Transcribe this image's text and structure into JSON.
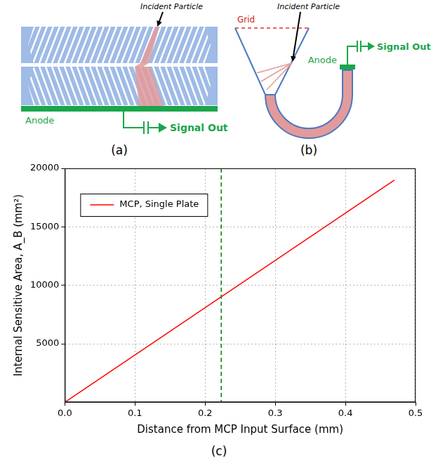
{
  "diagrams": [
    {
      "panel_label": "(a)",
      "incident_label": "Incident Particle",
      "anode_label": "Anode",
      "signal_label": "Signal Out"
    },
    {
      "panel_label": "(b)",
      "grid_label": "Grid",
      "incident_label": "Incident Particle",
      "anode_label": "Anode",
      "signal_label": "Signal Out"
    }
  ],
  "chart_data": {
    "type": "line",
    "panel_label": "(c)",
    "x_label": "Distance from MCP Input Surface (mm)",
    "y_label": "Internal Sensitive Area, A_B (mm²)",
    "x": [
      0,
      0.47
    ],
    "series": [
      {
        "name": "MCP, Single Plate",
        "color": "#ff0000",
        "values": [
          0,
          19000
        ]
      }
    ],
    "xlim": [
      0,
      0.5
    ],
    "xticks": [
      {
        "value": 0,
        "label": "0.0"
      },
      {
        "value": 0.1,
        "label": "0.1"
      },
      {
        "value": 0.2,
        "label": "0.2"
      },
      {
        "value": 0.3,
        "label": "0.3"
      },
      {
        "value": 0.4,
        "label": "0.4"
      },
      {
        "value": 0.5,
        "label": "0.5"
      }
    ],
    "ylim": [
      0,
      20000
    ],
    "yticks": [
      5000,
      10000,
      15000,
      20000
    ],
    "grid": true,
    "legend": "upper left",
    "vline": {
      "x": 0.223,
      "color": "#008000",
      "line_style": "dashed"
    }
  }
}
